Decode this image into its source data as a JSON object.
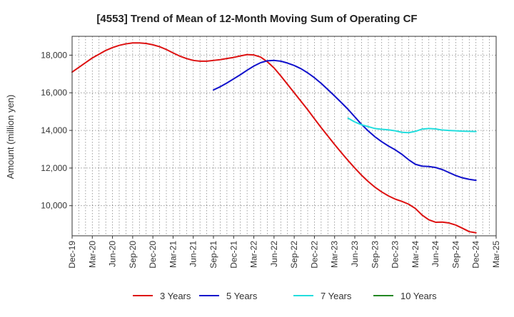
{
  "chart_data": {
    "type": "line",
    "title": "[4553]  Trend of Mean of 12-Month Moving Sum of Operating CF",
    "xlabel": "",
    "ylabel": "Amount (million yen)",
    "ylim": [
      8400,
      19000
    ],
    "yticks": [
      10000,
      12000,
      14000,
      16000,
      18000
    ],
    "ytick_labels": [
      "10,000",
      "12,000",
      "14,000",
      "16,000",
      "18,000"
    ],
    "xticks": [
      "Dec-19",
      "Mar-20",
      "Jun-20",
      "Sep-20",
      "Dec-20",
      "Mar-21",
      "Jun-21",
      "Sep-21",
      "Dec-21",
      "Mar-22",
      "Jun-22",
      "Sep-22",
      "Dec-22",
      "Mar-23",
      "Jun-23",
      "Sep-23",
      "Dec-23",
      "Mar-24",
      "Jun-24",
      "Sep-24",
      "Dec-24",
      "Mar-25"
    ],
    "grid": true,
    "legend_position": "bottom",
    "series": [
      {
        "name": "3 Years",
        "color": "#dd1111",
        "x": [
          0,
          1,
          2,
          3,
          4,
          5,
          6,
          7,
          8,
          9,
          10,
          11,
          12,
          13,
          14,
          15,
          16,
          17,
          18,
          19,
          20,
          21,
          22,
          23,
          24,
          25,
          26,
          27,
          28,
          29,
          30,
          31,
          32,
          33,
          34,
          35,
          36,
          37,
          38,
          39,
          40,
          41,
          42,
          43,
          44,
          45,
          46,
          47,
          48,
          49,
          50,
          51,
          52,
          53,
          54,
          55,
          56,
          57,
          58,
          59,
          60
        ],
        "values": [
          17100,
          17350,
          17600,
          17850,
          18050,
          18250,
          18400,
          18520,
          18600,
          18650,
          18650,
          18620,
          18550,
          18450,
          18300,
          18120,
          17950,
          17820,
          17720,
          17680,
          17680,
          17720,
          17760,
          17820,
          17880,
          17960,
          18030,
          18010,
          17900,
          17650,
          17320,
          16900,
          16450,
          16000,
          15550,
          15100,
          14620,
          14150,
          13700,
          13250,
          12820,
          12400,
          12000,
          11620,
          11280,
          10980,
          10730,
          10520,
          10350,
          10230,
          10080,
          9850,
          9500,
          9250,
          9120,
          9130,
          9080,
          8970,
          8800,
          8620,
          8560
        ]
      },
      {
        "name": "5 Years",
        "color": "#1111cc",
        "x": [
          21,
          22,
          23,
          24,
          25,
          26,
          27,
          28,
          29,
          30,
          31,
          32,
          33,
          34,
          35,
          36,
          37,
          38,
          39,
          40,
          41,
          42,
          43,
          44,
          45,
          46,
          47,
          48,
          49,
          50,
          51,
          52,
          53,
          54,
          55,
          56,
          57,
          58,
          59,
          60
        ],
        "values": [
          16150,
          16320,
          16520,
          16740,
          16960,
          17200,
          17420,
          17600,
          17700,
          17720,
          17680,
          17580,
          17450,
          17280,
          17060,
          16800,
          16500,
          16170,
          15830,
          15480,
          15120,
          14720,
          14320,
          13970,
          13660,
          13400,
          13170,
          12970,
          12730,
          12440,
          12200,
          12100,
          12080,
          12030,
          11920,
          11760,
          11600,
          11480,
          11400,
          11350
        ]
      },
      {
        "name": "7 Years",
        "color": "#22dddd",
        "x": [
          41,
          42,
          43,
          44,
          45,
          46,
          47,
          48,
          49,
          50,
          51,
          52,
          53,
          54,
          55,
          56,
          57,
          58,
          59,
          60
        ],
        "values": [
          14650,
          14450,
          14300,
          14200,
          14100,
          14060,
          14030,
          13980,
          13900,
          13880,
          13950,
          14070,
          14100,
          14080,
          14020,
          14000,
          13980,
          13960,
          13950,
          13940
        ]
      },
      {
        "name": "10 Years",
        "color": "#228822",
        "x": [],
        "values": []
      }
    ]
  }
}
